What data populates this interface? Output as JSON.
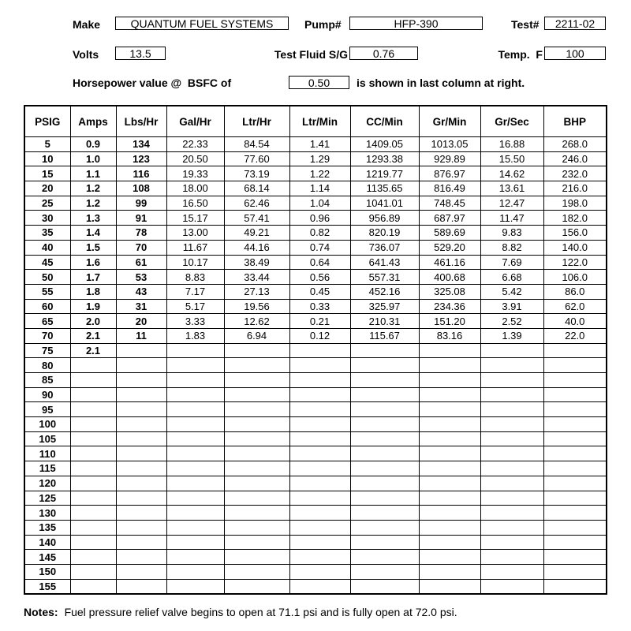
{
  "header": {
    "make_label": "Make",
    "make_value": "QUANTUM FUEL SYSTEMS",
    "pump_label": "Pump#",
    "pump_value": "HFP-390",
    "test_label": "Test#",
    "test_value": "2211-02",
    "volts_label": "Volts",
    "volts_value": "13.5",
    "sg_label": "Test Fluid S/G",
    "sg_value": "0.76",
    "temp_label": "Temp.  F",
    "temp_value": "100",
    "hp_label": "Horsepower value @  BSFC of",
    "bsfc_value": "0.50",
    "hp_suffix": "is shown in last column at right."
  },
  "table": {
    "columns": [
      "PSIG",
      "Amps",
      "Lbs/Hr",
      "Gal/Hr",
      "Ltr/Hr",
      "Ltr/Min",
      "CC/Min",
      "Gr/Min",
      "Gr/Sec",
      "BHP"
    ],
    "rows": [
      [
        "5",
        "0.9",
        "134",
        "22.33",
        "84.54",
        "1.41",
        "1409.05",
        "1013.05",
        "16.88",
        "268.0"
      ],
      [
        "10",
        "1.0",
        "123",
        "20.50",
        "77.60",
        "1.29",
        "1293.38",
        "929.89",
        "15.50",
        "246.0"
      ],
      [
        "15",
        "1.1",
        "116",
        "19.33",
        "73.19",
        "1.22",
        "1219.77",
        "876.97",
        "14.62",
        "232.0"
      ],
      [
        "20",
        "1.2",
        "108",
        "18.00",
        "68.14",
        "1.14",
        "1135.65",
        "816.49",
        "13.61",
        "216.0"
      ],
      [
        "25",
        "1.2",
        "99",
        "16.50",
        "62.46",
        "1.04",
        "1041.01",
        "748.45",
        "12.47",
        "198.0"
      ],
      [
        "30",
        "1.3",
        "91",
        "15.17",
        "57.41",
        "0.96",
        "956.89",
        "687.97",
        "11.47",
        "182.0"
      ],
      [
        "35",
        "1.4",
        "78",
        "13.00",
        "49.21",
        "0.82",
        "820.19",
        "589.69",
        "9.83",
        "156.0"
      ],
      [
        "40",
        "1.5",
        "70",
        "11.67",
        "44.16",
        "0.74",
        "736.07",
        "529.20",
        "8.82",
        "140.0"
      ],
      [
        "45",
        "1.6",
        "61",
        "10.17",
        "38.49",
        "0.64",
        "641.43",
        "461.16",
        "7.69",
        "122.0"
      ],
      [
        "50",
        "1.7",
        "53",
        "8.83",
        "33.44",
        "0.56",
        "557.31",
        "400.68",
        "6.68",
        "106.0"
      ],
      [
        "55",
        "1.8",
        "43",
        "7.17",
        "27.13",
        "0.45",
        "452.16",
        "325.08",
        "5.42",
        "86.0"
      ],
      [
        "60",
        "1.9",
        "31",
        "5.17",
        "19.56",
        "0.33",
        "325.97",
        "234.36",
        "3.91",
        "62.0"
      ],
      [
        "65",
        "2.0",
        "20",
        "3.33",
        "12.62",
        "0.21",
        "210.31",
        "151.20",
        "2.52",
        "40.0"
      ],
      [
        "70",
        "2.1",
        "11",
        "1.83",
        "6.94",
        "0.12",
        "115.67",
        "83.16",
        "1.39",
        "22.0"
      ],
      [
        "75",
        "2.1",
        "",
        "",
        "",
        "",
        "",
        "",
        "",
        ""
      ],
      [
        "80",
        "",
        "",
        "",
        "",
        "",
        "",
        "",
        "",
        ""
      ],
      [
        "85",
        "",
        "",
        "",
        "",
        "",
        "",
        "",
        "",
        ""
      ],
      [
        "90",
        "",
        "",
        "",
        "",
        "",
        "",
        "",
        "",
        ""
      ],
      [
        "95",
        "",
        "",
        "",
        "",
        "",
        "",
        "",
        "",
        ""
      ],
      [
        "100",
        "",
        "",
        "",
        "",
        "",
        "",
        "",
        "",
        ""
      ],
      [
        "105",
        "",
        "",
        "",
        "",
        "",
        "",
        "",
        "",
        ""
      ],
      [
        "110",
        "",
        "",
        "",
        "",
        "",
        "",
        "",
        "",
        ""
      ],
      [
        "115",
        "",
        "",
        "",
        "",
        "",
        "",
        "",
        "",
        ""
      ],
      [
        "120",
        "",
        "",
        "",
        "",
        "",
        "",
        "",
        "",
        ""
      ],
      [
        "125",
        "",
        "",
        "",
        "",
        "",
        "",
        "",
        "",
        ""
      ],
      [
        "130",
        "",
        "",
        "",
        "",
        "",
        "",
        "",
        "",
        ""
      ],
      [
        "135",
        "",
        "",
        "",
        "",
        "",
        "",
        "",
        "",
        ""
      ],
      [
        "140",
        "",
        "",
        "",
        "",
        "",
        "",
        "",
        "",
        ""
      ],
      [
        "145",
        "",
        "",
        "",
        "",
        "",
        "",
        "",
        "",
        ""
      ],
      [
        "150",
        "",
        "",
        "",
        "",
        "",
        "",
        "",
        "",
        ""
      ],
      [
        "155",
        "",
        "",
        "",
        "",
        "",
        "",
        "",
        "",
        ""
      ]
    ]
  },
  "notes": {
    "label": "Notes:",
    "text": "Fuel pressure relief valve begins to open at 71.1 psi and is fully open at 72.0 psi."
  }
}
